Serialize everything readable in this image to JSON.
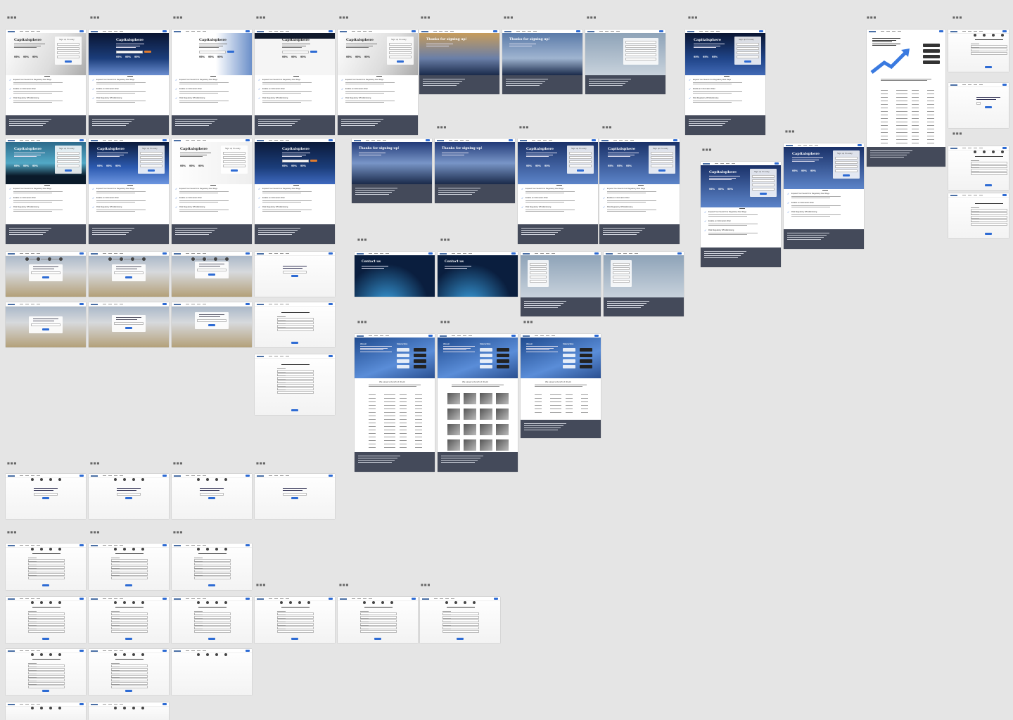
{
  "canvas": {
    "background": "#e5e5e5"
  },
  "colors": {
    "accent": "#2d6bd4",
    "footer": "#444a5a",
    "dark_hero": "#0b1a3a"
  },
  "labels": {
    "section_marker": "■■■"
  },
  "hero_copy": {
    "brand": "Capitalsphere",
    "thanks": "Thanks for signing up!",
    "contact": "Contact us",
    "about": "About",
    "interaction": "Interaction",
    "login": "Log in",
    "signup": "Sign up it's easy"
  },
  "stats": [
    "95%",
    "95%",
    "95%"
  ],
  "features": [
    "Expand Your Search For Regulatory Red Flags",
    "Enable an Information Filter",
    "Risk Regulatory Whistleblowing"
  ],
  "dashboard": {
    "heading": "We saved a bunch of check"
  },
  "icon_names": [
    "logo-icon",
    "check-icon",
    "step-icon",
    "chart-arrow-icon"
  ]
}
